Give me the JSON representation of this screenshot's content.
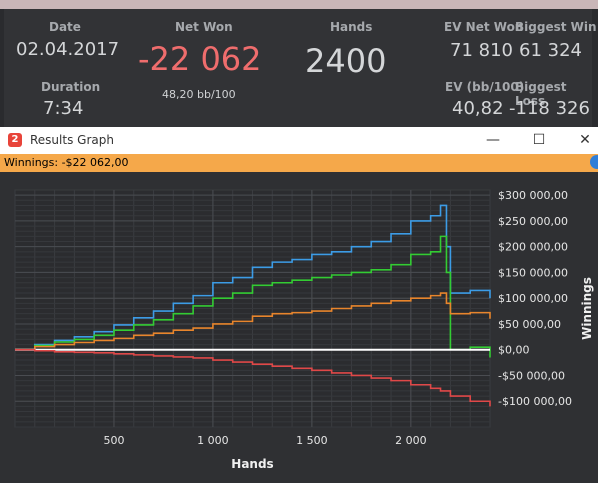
{
  "stats": {
    "date": {
      "label": "Date",
      "value": "02.04.2017"
    },
    "duration": {
      "label": "Duration",
      "value": "7:34"
    },
    "net_won": {
      "label": "Net Won",
      "value": "-22 062",
      "sub": "48,20 bb/100"
    },
    "hands": {
      "label": "Hands",
      "value": "2400"
    },
    "ev_net_won": {
      "label": "EV Net Won",
      "value": "71 810"
    },
    "biggest_win": {
      "label": "Biggest Win",
      "value": "61 324"
    },
    "ev_bb100": {
      "label": "EV (bb/100)",
      "value": "40,82"
    },
    "biggest_loss": {
      "label": "Biggest Loss",
      "value": "-118 326"
    }
  },
  "window": {
    "title": "Results Graph",
    "app_icon": "2",
    "minimize": "—",
    "maximize": "☐",
    "close": "✕",
    "winnings_bar": "Winnings: -$22 062,00"
  },
  "colors": {
    "net_won": "#ef6d6d",
    "blue": "#3c9ce6",
    "green": "#33cc33",
    "orange": "#e8852c",
    "red": "#e04848",
    "white": "#ffffff",
    "winnings_bar": "#f5a84a"
  },
  "chart_data": {
    "type": "line",
    "xlabel": "Hands",
    "ylabel": "Winnings",
    "xlim": [
      0,
      2400
    ],
    "ylim": [
      -150000,
      310000
    ],
    "x_ticks": [
      500,
      1000,
      1500,
      2000
    ],
    "x_tick_labels": [
      "500",
      "1 000",
      "1 500",
      "2 000"
    ],
    "y_ticks": [
      -100000,
      -50000,
      0,
      50000,
      100000,
      150000,
      200000,
      250000,
      300000
    ],
    "y_tick_labels": [
      "-$100 000,00",
      "-$50 000,00",
      "$0,00",
      "$50 000,00",
      "$100 000,00",
      "$150 000,00",
      "$200 000,00",
      "$250 000,00",
      "$300 000,00"
    ],
    "series": [
      {
        "color": "#3c9ce6",
        "x": [
          0,
          100,
          200,
          300,
          400,
          500,
          600,
          700,
          800,
          900,
          1000,
          1100,
          1200,
          1300,
          1400,
          1500,
          1600,
          1700,
          1800,
          1900,
          2000,
          2100,
          2150,
          2180,
          2200,
          2300,
          2400
        ],
        "y": [
          0,
          10000,
          18000,
          25000,
          35000,
          48000,
          62000,
          75000,
          90000,
          105000,
          130000,
          140000,
          160000,
          170000,
          175000,
          185000,
          190000,
          200000,
          210000,
          225000,
          250000,
          260000,
          280000,
          200000,
          110000,
          115000,
          100000
        ]
      },
      {
        "color": "#33cc33",
        "x": [
          0,
          100,
          200,
          300,
          400,
          500,
          600,
          700,
          800,
          900,
          1000,
          1100,
          1200,
          1300,
          1400,
          1500,
          1600,
          1700,
          1800,
          1900,
          2000,
          2100,
          2150,
          2180,
          2200,
          2300,
          2400
        ],
        "y": [
          0,
          8000,
          15000,
          20000,
          28000,
          38000,
          48000,
          58000,
          70000,
          85000,
          100000,
          110000,
          125000,
          130000,
          135000,
          140000,
          145000,
          150000,
          155000,
          165000,
          185000,
          190000,
          220000,
          150000,
          0,
          5000,
          -15000
        ]
      },
      {
        "color": "#e8852c",
        "x": [
          0,
          100,
          200,
          300,
          400,
          500,
          600,
          700,
          800,
          900,
          1000,
          1100,
          1200,
          1300,
          1400,
          1500,
          1600,
          1700,
          1800,
          1900,
          2000,
          2100,
          2150,
          2180,
          2200,
          2300,
          2400
        ],
        "y": [
          0,
          6000,
          10000,
          14000,
          18000,
          22000,
          28000,
          32000,
          38000,
          42000,
          50000,
          55000,
          65000,
          70000,
          72000,
          75000,
          80000,
          85000,
          90000,
          95000,
          100000,
          105000,
          110000,
          90000,
          70000,
          72000,
          60000
        ]
      },
      {
        "color": "#ffffff",
        "x": [
          0,
          2400
        ],
        "y": [
          0,
          0
        ]
      },
      {
        "color": "#e04848",
        "x": [
          0,
          100,
          200,
          300,
          400,
          500,
          600,
          700,
          800,
          900,
          1000,
          1100,
          1200,
          1300,
          1400,
          1500,
          1600,
          1700,
          1800,
          1900,
          2000,
          2100,
          2150,
          2200,
          2300,
          2400
        ],
        "y": [
          0,
          -2000,
          -4000,
          -5000,
          -6000,
          -8000,
          -10000,
          -12000,
          -14000,
          -16000,
          -20000,
          -24000,
          -28000,
          -32000,
          -36000,
          -40000,
          -45000,
          -50000,
          -55000,
          -60000,
          -68000,
          -75000,
          -80000,
          -90000,
          -100000,
          -110000
        ]
      }
    ]
  }
}
